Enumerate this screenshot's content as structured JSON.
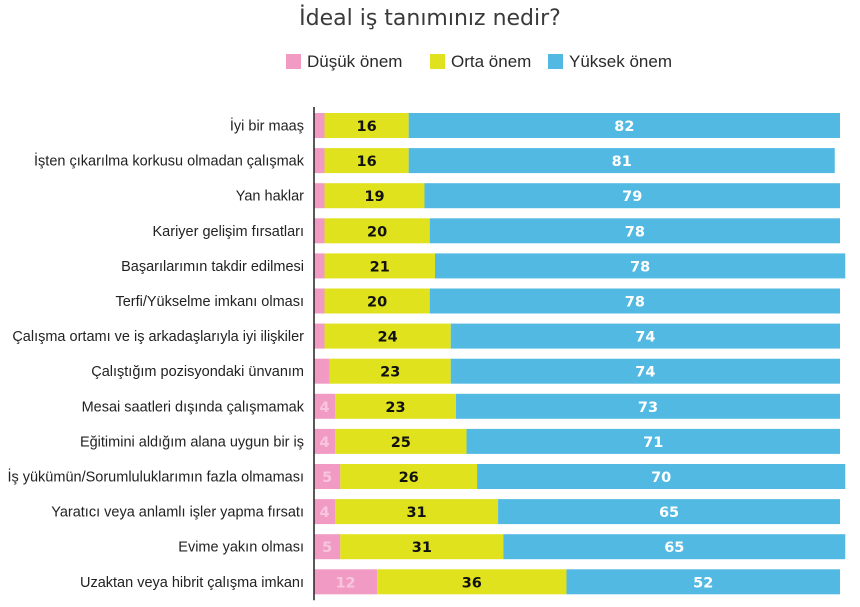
{
  "colors": {
    "low": "#f19ac4",
    "mid": "#dfe21d",
    "high": "#52b9e3",
    "axis": "#222222"
  },
  "chart_data": {
    "type": "bar",
    "orientation": "horizontal",
    "stacked": true,
    "title": "İdeal iş tanımınız nedir?",
    "legend_placement": "top",
    "xlim": [
      0,
      100
    ],
    "categories": [
      "İyi bir maaş",
      "İşten çıkarılma korkusu olmadan çalışmak",
      "Yan haklar",
      "Kariyer gelişim fırsatları",
      "Başarılarımın takdir edilmesi",
      "Terfi/Yükselme imkanı olması",
      "Çalışma ortamı ve iş arkadaşlarıyla iyi ilişkiler",
      "Çalıştığım pozisyondaki ünvanım",
      "Mesai saatleri dışında çalışmamak",
      "Eğitimini aldığım alana uygun bir iş",
      "İş yükümün/Sorumluluklarımın fazla olmaması",
      "Yaratıcı veya anlamlı işler yapma fırsatı",
      "Evime yakın olması",
      "Uzaktan veya hibrit çalışma imkanı"
    ],
    "series": [
      {
        "name": "Düşük önem",
        "color": "#f19ac4",
        "label_color": "#f7c6de",
        "values": [
          2,
          2,
          2,
          2,
          2,
          2,
          2,
          3,
          4,
          4,
          5,
          4,
          5,
          12
        ]
      },
      {
        "name": "Orta önem",
        "color": "#dfe21d",
        "label_color": "#111111",
        "values": [
          16,
          16,
          19,
          20,
          21,
          20,
          24,
          23,
          23,
          25,
          26,
          31,
          31,
          36
        ]
      },
      {
        "name": "Yüksek önem",
        "color": "#52b9e3",
        "label_color": "#ffffff",
        "values": [
          82,
          81,
          79,
          78,
          78,
          78,
          74,
          74,
          73,
          71,
          70,
          65,
          65,
          52
        ]
      }
    ]
  }
}
